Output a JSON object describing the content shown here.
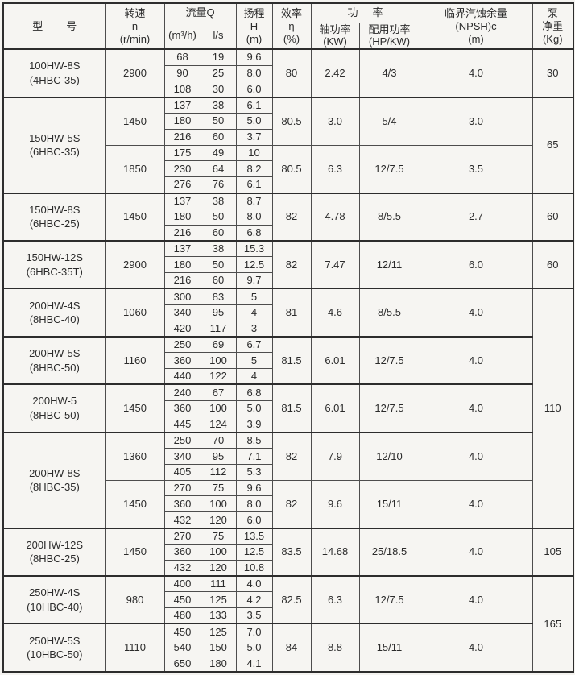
{
  "table": {
    "header": {
      "model": "型        号",
      "speed": "转速\nn\n(r/min)",
      "flow": "流量Q",
      "flow_m3h": "(m³/h)",
      "flow_ls": "l/s",
      "head": "扬程\nH\n(m)",
      "efficiency": "效率\nη\n(%)",
      "power": "功     率",
      "shaft_power": "轴功率\n(KW)",
      "rated_power": "配用功率\n(HP/KW)",
      "npsh": "临界汽蚀余量\n(NPSH)c\n(m)",
      "weight": "泵\n净重\n(Kg)"
    },
    "groups": [
      {
        "model": [
          "100HW-8S",
          "(4HBC-35)"
        ],
        "weight": "30",
        "weight_span": 3,
        "speeds": [
          {
            "rpm": "2900",
            "rows": [
              [
                "68",
                "19",
                "9.6"
              ],
              [
                "90",
                "25",
                "8.0"
              ],
              [
                "108",
                "30",
                "6.0"
              ]
            ],
            "eff": "80",
            "shaft": "2.42",
            "rated": "4/3",
            "npsh": "4.0"
          }
        ]
      },
      {
        "model": [
          "150HW-5S",
          "(6HBC-35)"
        ],
        "weight": "65",
        "weight_span": 6,
        "speeds": [
          {
            "rpm": "1450",
            "rows": [
              [
                "137",
                "38",
                "6.1"
              ],
              [
                "180",
                "50",
                "5.0"
              ],
              [
                "216",
                "60",
                "3.7"
              ]
            ],
            "eff": "80.5",
            "shaft": "3.0",
            "rated": "5/4",
            "npsh": "3.0"
          },
          {
            "rpm": "1850",
            "rows": [
              [
                "175",
                "49",
                "10"
              ],
              [
                "230",
                "64",
                "8.2"
              ],
              [
                "276",
                "76",
                "6.1"
              ]
            ],
            "eff": "80.5",
            "shaft": "6.3",
            "rated": "12/7.5",
            "npsh": "3.5"
          }
        ]
      },
      {
        "model": [
          "150HW-8S",
          "(6HBC-25)"
        ],
        "weight": "60",
        "weight_span": 3,
        "speeds": [
          {
            "rpm": "1450",
            "rows": [
              [
                "137",
                "38",
                "8.7"
              ],
              [
                "180",
                "50",
                "8.0"
              ],
              [
                "216",
                "60",
                "6.8"
              ]
            ],
            "eff": "82",
            "shaft": "4.78",
            "rated": "8/5.5",
            "npsh": "2.7"
          }
        ]
      },
      {
        "model": [
          "150HW-12S",
          "(6HBC-35T)"
        ],
        "weight": "60",
        "weight_span": 3,
        "speeds": [
          {
            "rpm": "2900",
            "rows": [
              [
                "137",
                "38",
                "15.3"
              ],
              [
                "180",
                "50",
                "12.5"
              ],
              [
                "216",
                "60",
                "9.7"
              ]
            ],
            "eff": "82",
            "shaft": "7.47",
            "rated": "12/11",
            "npsh": "6.0"
          }
        ]
      },
      {
        "model": [
          "200HW-4S",
          "(8HBC-40)"
        ],
        "weight": "110",
        "weight_span": 15,
        "speeds": [
          {
            "rpm": "1060",
            "rows": [
              [
                "300",
                "83",
                "5"
              ],
              [
                "340",
                "95",
                "4"
              ],
              [
                "420",
                "117",
                "3"
              ]
            ],
            "eff": "81",
            "shaft": "4.6",
            "rated": "8/5.5",
            "npsh": "4.0"
          }
        ]
      },
      {
        "model": [
          "200HW-5S",
          "(8HBC-50)"
        ],
        "speeds": [
          {
            "rpm": "1160",
            "rows": [
              [
                "250",
                "69",
                "6.7"
              ],
              [
                "360",
                "100",
                "5"
              ],
              [
                "440",
                "122",
                "4"
              ]
            ],
            "eff": "81.5",
            "shaft": "6.01",
            "rated": "12/7.5",
            "npsh": "4.0"
          }
        ]
      },
      {
        "model": [
          "200HW-5",
          "(8HBC-50)"
        ],
        "speeds": [
          {
            "rpm": "1450",
            "rows": [
              [
                "240",
                "67",
                "6.8"
              ],
              [
                "360",
                "100",
                "5.0"
              ],
              [
                "445",
                "124",
                "3.9"
              ]
            ],
            "eff": "81.5",
            "shaft": "6.01",
            "rated": "12/7.5",
            "npsh": "4.0"
          }
        ]
      },
      {
        "model": [
          "200HW-8S",
          "(8HBC-35)"
        ],
        "speeds": [
          {
            "rpm": "1360",
            "rows": [
              [
                "250",
                "70",
                "8.5"
              ],
              [
                "340",
                "95",
                "7.1"
              ],
              [
                "405",
                "112",
                "5.3"
              ]
            ],
            "eff": "82",
            "shaft": "7.9",
            "rated": "12/10",
            "npsh": "4.0"
          },
          {
            "rpm": "1450",
            "rows": [
              [
                "270",
                "75",
                "9.6"
              ],
              [
                "360",
                "100",
                "8.0"
              ],
              [
                "432",
                "120",
                "6.0"
              ]
            ],
            "eff": "82",
            "shaft": "9.6",
            "rated": "15/11",
            "npsh": "4.0"
          }
        ]
      },
      {
        "model": [
          "200HW-12S",
          "(8HBC-25)"
        ],
        "weight": "105",
        "weight_span": 3,
        "speeds": [
          {
            "rpm": "1450",
            "rows": [
              [
                "270",
                "75",
                "13.5"
              ],
              [
                "360",
                "100",
                "12.5"
              ],
              [
                "432",
                "120",
                "10.8"
              ]
            ],
            "eff": "83.5",
            "shaft": "14.68",
            "rated": "25/18.5",
            "npsh": "4.0"
          }
        ]
      },
      {
        "model": [
          "250HW-4S",
          "(10HBC-40)"
        ],
        "weight": "165",
        "weight_span": 6,
        "speeds": [
          {
            "rpm": "980",
            "rows": [
              [
                "400",
                "111",
                "4.0"
              ],
              [
                "450",
                "125",
                "4.2"
              ],
              [
                "480",
                "133",
                "3.5"
              ]
            ],
            "eff": "82.5",
            "shaft": "6.3",
            "rated": "12/7.5",
            "npsh": "4.0"
          }
        ]
      },
      {
        "model": [
          "250HW-5S",
          "(10HBC-50)"
        ],
        "speeds": [
          {
            "rpm": "1110",
            "rows": [
              [
                "450",
                "125",
                "7.0"
              ],
              [
                "540",
                "150",
                "5.0"
              ],
              [
                "650",
                "180",
                "4.1"
              ]
            ],
            "eff": "84",
            "shaft": "8.8",
            "rated": "15/11",
            "npsh": "4.0"
          }
        ]
      }
    ]
  },
  "colors": {
    "ink": "#2b2b2b",
    "grid_line": "#4d4d4d",
    "heavy_line": "#2d2d2d",
    "paper": "#f4f3f0"
  }
}
